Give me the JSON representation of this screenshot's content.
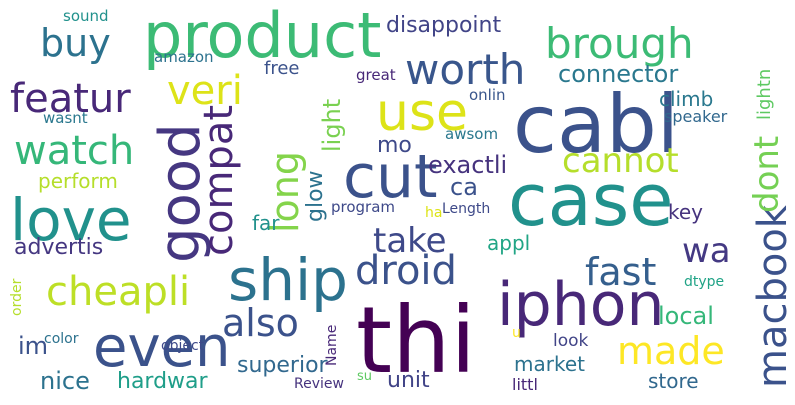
{
  "words": [
    {
      "text": "thi",
      "color": "#440154"
    },
    {
      "text": "cabl",
      "color": "#3b528b"
    },
    {
      "text": "case",
      "color": "#21918c"
    },
    {
      "text": "iphon",
      "color": "#482878"
    },
    {
      "text": "product",
      "color": "#3cbb75"
    },
    {
      "text": "cut",
      "color": "#3b528b"
    },
    {
      "text": "use",
      "color": "#dde318"
    },
    {
      "text": "love",
      "color": "#21918c"
    },
    {
      "text": "good",
      "color": "#453781"
    },
    {
      "text": "ship",
      "color": "#2c728e"
    },
    {
      "text": "even",
      "color": "#3b528b"
    },
    {
      "text": "macbook",
      "color": "#3b528b"
    },
    {
      "text": "compat",
      "color": "#482878"
    },
    {
      "text": "dont",
      "color": "#75d054"
    },
    {
      "text": "worth",
      "color": "#39568c"
    },
    {
      "text": "droid",
      "color": "#3b528b"
    },
    {
      "text": "brough",
      "color": "#3cbb75"
    },
    {
      "text": "featur",
      "color": "#482878"
    },
    {
      "text": "watch",
      "color": "#35b779"
    },
    {
      "text": "cheapli",
      "color": "#bddf26"
    },
    {
      "text": "also",
      "color": "#3b528b"
    },
    {
      "text": "made",
      "color": "#fde725"
    },
    {
      "text": "long",
      "color": "#84d44b"
    },
    {
      "text": "cannot",
      "color": "#b5de2b"
    },
    {
      "text": "buy",
      "color": "#2c728e"
    },
    {
      "text": "fast",
      "color": "#355f8d"
    },
    {
      "text": "wa",
      "color": "#443983"
    },
    {
      "text": "take",
      "color": "#3e4989"
    },
    {
      "text": "veri",
      "color": "#dde318"
    },
    {
      "text": "glow",
      "color": "#2c728e"
    },
    {
      "text": "connector",
      "color": "#2a788e"
    },
    {
      "text": "disappoint",
      "color": "#414487"
    },
    {
      "text": "light",
      "color": "#7ad151"
    },
    {
      "text": "exactli",
      "color": "#46337e"
    },
    {
      "text": "lightn",
      "color": "#5ec962"
    },
    {
      "text": "ca",
      "color": "#3b528b"
    },
    {
      "text": "mo",
      "color": "#3e4989"
    },
    {
      "text": "nice",
      "color": "#2c728e"
    },
    {
      "text": "superior",
      "color": "#31688e"
    },
    {
      "text": "unit",
      "color": "#414487"
    },
    {
      "text": "local",
      "color": "#35b779"
    },
    {
      "text": "market",
      "color": "#2c728e"
    },
    {
      "text": "store",
      "color": "#31688e"
    },
    {
      "text": "advertis",
      "color": "#453781"
    },
    {
      "text": "im",
      "color": "#3b528b"
    },
    {
      "text": "hardwar",
      "color": "#1f9e89"
    },
    {
      "text": "appl",
      "color": "#21a585"
    },
    {
      "text": "climb",
      "color": "#2a788e"
    },
    {
      "text": "perform",
      "color": "#b5de2b"
    },
    {
      "text": "key",
      "color": "#46337e"
    },
    {
      "text": "far",
      "color": "#21918c"
    },
    {
      "text": "free",
      "color": "#3b528b"
    },
    {
      "text": "look",
      "color": "#414487"
    },
    {
      "text": "littl",
      "color": "#482878"
    },
    {
      "text": "speaker",
      "color": "#31688e"
    },
    {
      "text": "awsom",
      "color": "#2a788e"
    },
    {
      "text": "onlin",
      "color": "#39568c"
    },
    {
      "text": "great",
      "color": "#482878"
    },
    {
      "text": "wasnt",
      "color": "#2a788e"
    },
    {
      "text": "amazon",
      "color": "#2c728e"
    },
    {
      "text": "sound",
      "color": "#21918c"
    },
    {
      "text": "program",
      "color": "#3e4989"
    },
    {
      "text": "Length",
      "color": "#3e4989"
    },
    {
      "text": "ha",
      "color": "#dde318"
    },
    {
      "text": "Name",
      "color": "#482878"
    },
    {
      "text": "Review",
      "color": "#46337e"
    },
    {
      "text": "su",
      "color": "#5ec962"
    },
    {
      "text": "u",
      "color": "#fde725"
    },
    {
      "text": "dtype",
      "color": "#20a386"
    },
    {
      "text": "object",
      "color": "#3e4989"
    },
    {
      "text": "color",
      "color": "#2c728e"
    },
    {
      "text": "order",
      "color": "#b5de2b"
    }
  ]
}
